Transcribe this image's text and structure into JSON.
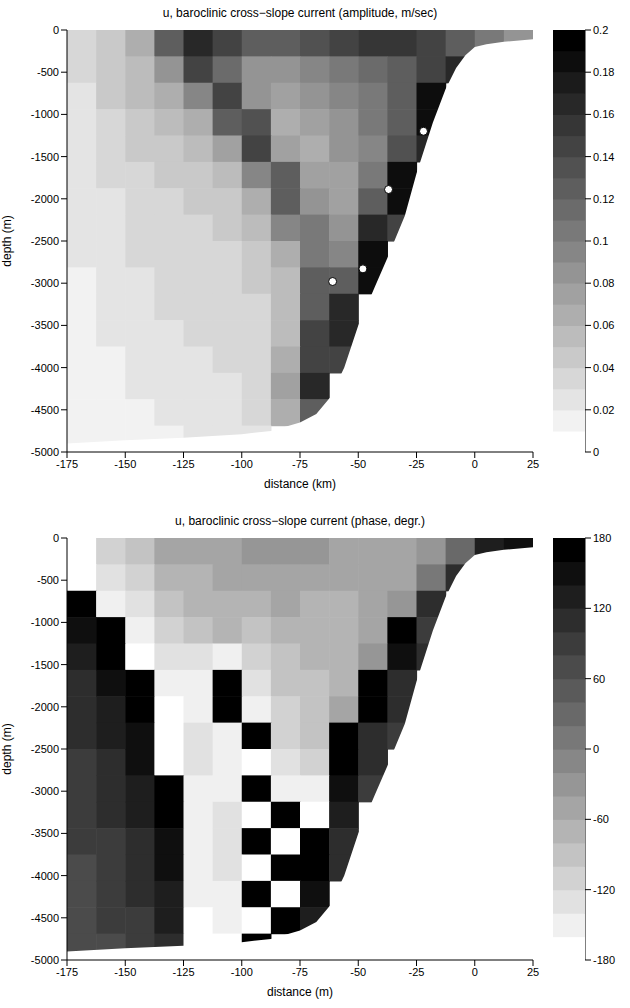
{
  "chart_data": [
    {
      "type": "heatmap",
      "title": "u, baroclinic cross−slope current (amplitude, m/sec)",
      "x_label": "distance (km)",
      "y_label": "depth (m)",
      "xlim": [
        -175,
        25
      ],
      "xticks": [
        -175,
        -150,
        -125,
        -100,
        -75,
        -50,
        -25,
        0,
        25
      ],
      "ylim": [
        -5000,
        0
      ],
      "yticks": [
        -5000,
        -4500,
        -4000,
        -3500,
        -3000,
        -2500,
        -2000,
        -1500,
        -1000,
        -500,
        0
      ],
      "x": [
        -168.75,
        -156.25,
        -143.75,
        -131.25,
        -118.75,
        -106.25,
        -93.75,
        -81.25,
        -68.75,
        -56.25,
        -43.75,
        -31.25,
        -18.75,
        -6.25,
        6.25,
        18.75
      ],
      "y": [
        -156.25,
        -468.75,
        -781.25,
        -1093.75,
        -1406.25,
        -1718.75,
        -2031.25,
        -2343.75,
        -2656.25,
        -2968.75,
        -3281.25,
        -3593.75,
        -3906.25,
        -4218.75,
        -4531.25,
        -4843.75
      ],
      "cells": [
        [
          0.03,
          0.04,
          0.06,
          0.12,
          0.16,
          0.14,
          0.12,
          0.12,
          0.13,
          0.14,
          0.15,
          0.15,
          0.14,
          0.12,
          0.1,
          0.08
        ],
        [
          0.03,
          0.04,
          0.05,
          0.08,
          0.14,
          0.11,
          0.08,
          0.08,
          0.09,
          0.1,
          0.11,
          0.12,
          0.14,
          0.16,
          null,
          null
        ],
        [
          0.02,
          0.04,
          0.05,
          0.06,
          0.09,
          0.14,
          0.08,
          0.07,
          0.08,
          0.09,
          0.1,
          0.12,
          0.18,
          null,
          null,
          null
        ],
        [
          0.02,
          0.03,
          0.04,
          0.05,
          0.06,
          0.12,
          0.13,
          0.06,
          0.07,
          0.08,
          0.1,
          0.12,
          0.18,
          null,
          null,
          null
        ],
        [
          0.02,
          0.03,
          0.04,
          0.04,
          0.05,
          0.07,
          0.14,
          0.07,
          0.06,
          0.08,
          0.09,
          0.13,
          0.16,
          null,
          null,
          null
        ],
        [
          0.02,
          0.03,
          0.03,
          0.04,
          0.04,
          0.05,
          0.09,
          0.12,
          0.07,
          0.07,
          0.1,
          0.18,
          null,
          null,
          null,
          null
        ],
        [
          0.02,
          0.02,
          0.03,
          0.03,
          0.04,
          0.04,
          0.06,
          0.12,
          0.08,
          0.07,
          0.12,
          0.18,
          null,
          null,
          null,
          null
        ],
        [
          0.02,
          0.02,
          0.03,
          0.03,
          0.03,
          0.04,
          0.05,
          0.09,
          0.1,
          0.08,
          0.16,
          0.14,
          null,
          null,
          null,
          null
        ],
        [
          0.02,
          0.02,
          0.03,
          0.03,
          0.03,
          0.03,
          0.04,
          0.06,
          0.1,
          0.09,
          0.18,
          null,
          null,
          null,
          null,
          null
        ],
        [
          0.01,
          0.02,
          0.02,
          0.03,
          0.03,
          0.03,
          0.04,
          0.05,
          0.12,
          0.12,
          0.18,
          null,
          null,
          null,
          null,
          null
        ],
        [
          0.01,
          0.02,
          0.02,
          0.03,
          0.03,
          0.03,
          0.03,
          0.05,
          0.12,
          0.16,
          null,
          null,
          null,
          null,
          null,
          null
        ],
        [
          0.01,
          0.02,
          0.02,
          0.02,
          0.03,
          0.03,
          0.03,
          0.05,
          0.14,
          0.16,
          null,
          null,
          null,
          null,
          null,
          null
        ],
        [
          0.01,
          0.01,
          0.02,
          0.02,
          0.02,
          0.03,
          0.03,
          0.06,
          0.14,
          0.14,
          null,
          null,
          null,
          null,
          null,
          null
        ],
        [
          0.01,
          0.01,
          0.02,
          0.02,
          0.02,
          0.02,
          0.03,
          0.07,
          0.16,
          null,
          null,
          null,
          null,
          null,
          null,
          null
        ],
        [
          0.01,
          0.01,
          0.01,
          0.02,
          0.02,
          0.02,
          0.03,
          0.06,
          0.12,
          null,
          null,
          null,
          null,
          null,
          null,
          null
        ],
        [
          0.01,
          0.01,
          0.01,
          0.01,
          0.02,
          0.02,
          0.02,
          null,
          null,
          null,
          null,
          null,
          null,
          null,
          null,
          null
        ]
      ],
      "colorbar": {
        "range": [
          0,
          0.2
        ],
        "ticks": [
          0,
          0.02,
          0.04,
          0.06,
          0.08,
          0.1,
          0.12,
          0.14,
          0.16,
          0.18,
          0.2
        ],
        "level_step": 0.01
      },
      "bottom": {
        "x": [
          -175,
          -150,
          -125,
          -100,
          -87.5,
          -75,
          -68,
          -62,
          -56,
          -50,
          -43,
          -37.5,
          -30,
          -25,
          -18,
          -12.5,
          -8,
          -4,
          0,
          5,
          12.5,
          25
        ],
        "depth": [
          -4900,
          -4860,
          -4830,
          -4790,
          -4750,
          -4650,
          -4550,
          -4350,
          -4000,
          -3500,
          -3050,
          -2700,
          -2200,
          -1700,
          -1100,
          -700,
          -450,
          -300,
          -200,
          -170,
          -140,
          -110
        ]
      },
      "markers": {
        "x": [
          -22,
          -37,
          -48,
          -61
        ],
        "y": [
          -1200,
          -1890,
          -2830,
          -2980
        ]
      },
      "marker": "circle"
    },
    {
      "type": "heatmap",
      "title": "u, baroclinic cross−slope current (phase, degr.)",
      "x_label": "distance (m)",
      "y_label": "depth (m)",
      "xlim": [
        -175,
        25
      ],
      "xticks": [
        -175,
        -150,
        -125,
        -100,
        -75,
        -50,
        -25,
        0,
        25
      ],
      "ylim": [
        -5000,
        0
      ],
      "yticks": [
        -5000,
        -4500,
        -4000,
        -3500,
        -3000,
        -2500,
        -2000,
        -1500,
        -1000,
        -500,
        0
      ],
      "x": [
        -168.75,
        -156.25,
        -143.75,
        -131.25,
        -118.75,
        -106.25,
        -93.75,
        -81.25,
        -68.75,
        -56.25,
        -43.75,
        -31.25,
        -18.75,
        -6.25,
        6.25,
        18.75
      ],
      "y": [
        -156.25,
        -468.75,
        -781.25,
        -1093.75,
        -1406.25,
        -1718.75,
        -2031.25,
        -2343.75,
        -2656.25,
        -2968.75,
        -3281.25,
        -3593.75,
        -3906.25,
        -4218.75,
        -4531.25,
        -4843.75
      ],
      "cells": [
        [
          -170,
          -120,
          -90,
          -60,
          -60,
          -50,
          -40,
          -40,
          -40,
          -50,
          -60,
          -60,
          -40,
          20,
          120,
          140
        ],
        [
          -170,
          -140,
          -110,
          -80,
          -70,
          -60,
          -60,
          -50,
          -50,
          -60,
          -60,
          -50,
          0,
          100,
          null,
          null
        ],
        [
          160,
          -160,
          -130,
          -100,
          -80,
          -70,
          -70,
          -60,
          -70,
          -70,
          -60,
          -30,
          100,
          null,
          null,
          null
        ],
        [
          140,
          170,
          -150,
          -120,
          -100,
          -80,
          -100,
          -80,
          -70,
          -80,
          -60,
          170,
          90,
          null,
          null,
          null
        ],
        [
          120,
          160,
          -170,
          -140,
          -130,
          -150,
          -120,
          -90,
          -80,
          -80,
          -40,
          150,
          100,
          null,
          null,
          null
        ],
        [
          110,
          140,
          170,
          -160,
          -150,
          170,
          -140,
          -100,
          -90,
          -70,
          170,
          100,
          null,
          null,
          null,
          null
        ],
        [
          100,
          130,
          160,
          -170,
          -150,
          170,
          -160,
          -110,
          -90,
          -60,
          160,
          100,
          null,
          null,
          null,
          null
        ],
        [
          100,
          120,
          150,
          -170,
          -140,
          -160,
          170,
          -120,
          -100,
          170,
          110,
          90,
          null,
          null,
          null,
          null
        ],
        [
          90,
          110,
          140,
          -170,
          -140,
          -150,
          -170,
          -140,
          -120,
          170,
          100,
          null,
          null,
          null,
          null,
          null
        ],
        [
          90,
          100,
          130,
          170,
          -150,
          -150,
          170,
          -160,
          -150,
          150,
          90,
          null,
          null,
          null,
          null,
          null
        ],
        [
          80,
          100,
          120,
          160,
          -150,
          -140,
          -170,
          170,
          -170,
          120,
          null,
          null,
          null,
          null,
          null,
          null
        ],
        [
          80,
          90,
          110,
          150,
          -150,
          -140,
          170,
          -170,
          170,
          110,
          null,
          null,
          null,
          null,
          null,
          null
        ],
        [
          70,
          90,
          100,
          140,
          -160,
          -140,
          -170,
          170,
          160,
          100,
          null,
          null,
          null,
          null,
          null,
          null
        ],
        [
          70,
          80,
          100,
          130,
          -160,
          -150,
          170,
          -170,
          150,
          null,
          null,
          null,
          null,
          null,
          null,
          null
        ],
        [
          60,
          80,
          90,
          120,
          -170,
          -160,
          -170,
          170,
          130,
          null,
          null,
          null,
          null,
          null,
          null,
          null
        ],
        [
          60,
          70,
          80,
          110,
          -170,
          -170,
          170,
          null,
          null,
          null,
          null,
          null,
          null,
          null,
          null,
          null
        ]
      ],
      "colorbar": {
        "range": [
          -180,
          180
        ],
        "ticks": [
          -180,
          -120,
          -60,
          0,
          60,
          120,
          180
        ],
        "level_step": 20
      },
      "bottom": {
        "x": [
          -175,
          -150,
          -125,
          -100,
          -87.5,
          -75,
          -68,
          -62,
          -56,
          -50,
          -43,
          -37.5,
          -30,
          -25,
          -18,
          -12.5,
          -8,
          -4,
          0,
          5,
          12.5,
          25
        ],
        "depth": [
          -4900,
          -4860,
          -4830,
          -4790,
          -4750,
          -4650,
          -4550,
          -4350,
          -4000,
          -3500,
          -3050,
          -2700,
          -2200,
          -1700,
          -1100,
          -700,
          -450,
          -300,
          -200,
          -170,
          -140,
          -110
        ]
      }
    }
  ]
}
